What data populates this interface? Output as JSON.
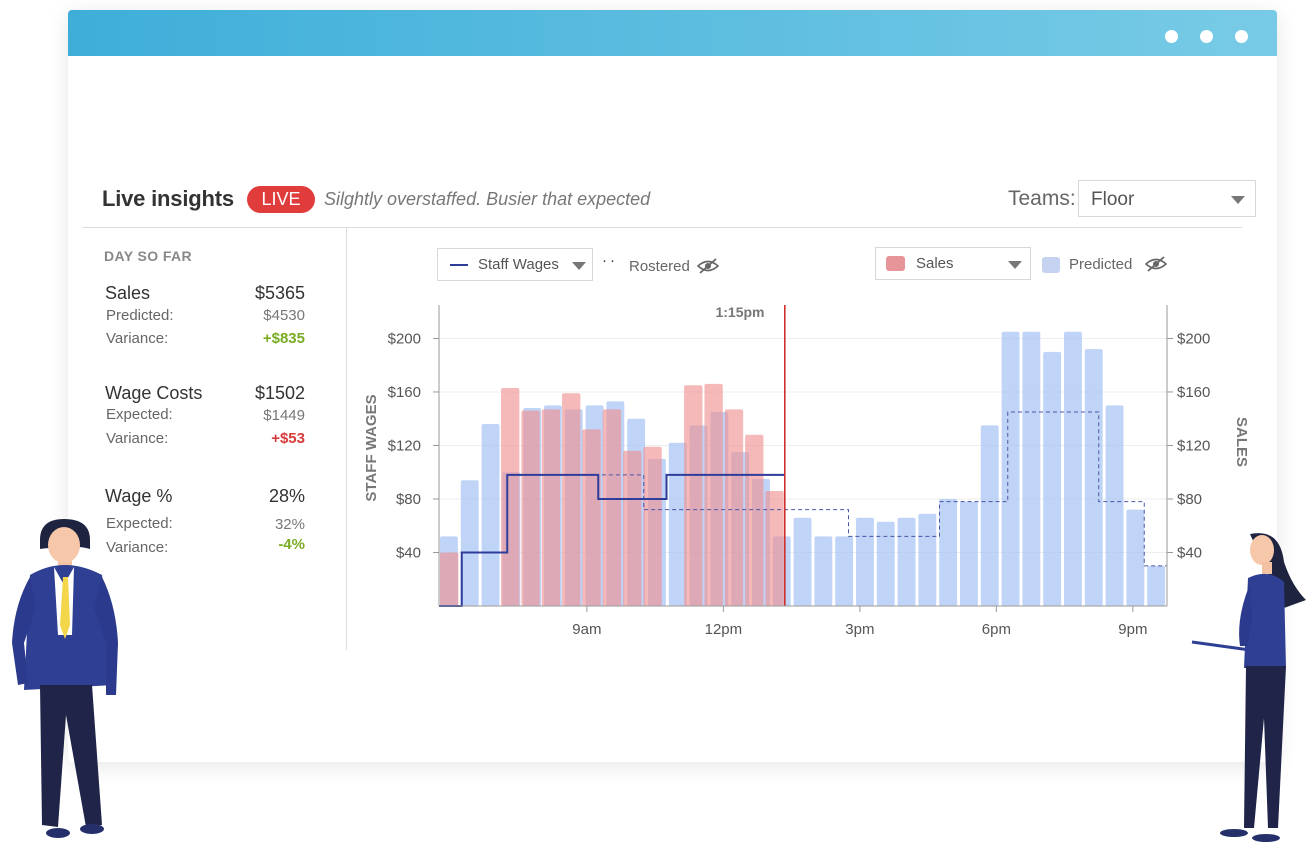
{
  "header": {
    "title": "Live insights",
    "live_badge": "LIVE",
    "status_text": "Silghtly overstaffed. Busier that expected",
    "teams_label": "Teams:",
    "teams_value": "Floor"
  },
  "summary": {
    "heading": "DAY SO FAR",
    "metrics": [
      {
        "title": "Sales",
        "value": "$5365",
        "sub1_label": "Predicted:",
        "sub1_value": "$4530",
        "sub2_label": "Variance:",
        "sub2_value": "+$835"
      },
      {
        "title": "Wage Costs",
        "value": "$1502",
        "sub1_label": "Expected:",
        "sub1_value": "$1449",
        "sub2_label": "Variance:",
        "sub2_value": "+$53"
      },
      {
        "title": "Wage %",
        "value": "28%",
        "sub1_label": "Expected:",
        "sub1_value": "32%",
        "sub2_label": "Variance:",
        "sub2_value": "-4%"
      }
    ]
  },
  "legend": {
    "wages_label": "Staff Wages",
    "rostered_label": "Rostered",
    "sales_label": "Sales",
    "predicted_label": "Predicted"
  },
  "chart_data": {
    "type": "bar",
    "now_label": "1:15pm",
    "ylabel_left": "STAFF WAGES",
    "ylabel_right": "SALES",
    "ylim": [
      0,
      225
    ],
    "yticks": [
      "$40",
      "$80",
      "$120",
      "$160",
      "$200"
    ],
    "ytick_values": [
      40,
      80,
      120,
      160,
      200
    ],
    "xticks": [
      "9am",
      "12pm",
      "3pm",
      "6pm",
      "9pm"
    ],
    "xtick_slots": [
      6.5,
      12.5,
      18.5,
      24.5,
      30.5
    ],
    "slot_count": 32,
    "now_slot": 15.2,
    "colors": {
      "sales": "#f08e8e",
      "predicted": "#a8c4f4",
      "wages": "#2e3d9a",
      "now": "#d23030"
    },
    "predicted": [
      52,
      94,
      136,
      100,
      148,
      150,
      147,
      150,
      153,
      140,
      110,
      122,
      135,
      145,
      115,
      95,
      52,
      66,
      52,
      52,
      66,
      63,
      66,
      69,
      80,
      78,
      135,
      205,
      205,
      190,
      205,
      192,
      150,
      72,
      30
    ],
    "sales": [
      40,
      0,
      0,
      163,
      146,
      147,
      159,
      132,
      147,
      116,
      119,
      0,
      165,
      166,
      147,
      128,
      86
    ],
    "wages_steps": [
      [
        0,
        0
      ],
      [
        1,
        40
      ],
      [
        3,
        98
      ],
      [
        7,
        80
      ],
      [
        10,
        98
      ],
      [
        15.2,
        98
      ]
    ],
    "rostered_steps": [
      [
        0,
        0
      ],
      [
        1,
        40
      ],
      [
        3,
        98
      ],
      [
        9,
        72
      ],
      [
        18,
        52
      ],
      [
        22,
        78
      ],
      [
        25,
        145
      ],
      [
        29,
        78
      ],
      [
        31,
        30
      ],
      [
        32,
        30
      ]
    ]
  }
}
